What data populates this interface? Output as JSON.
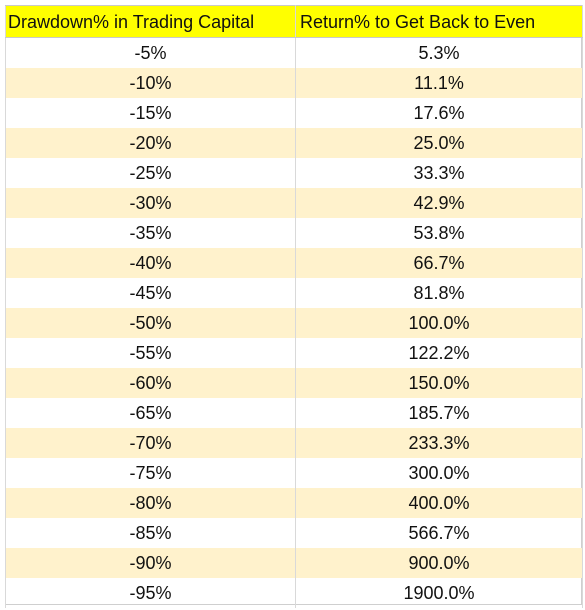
{
  "table": {
    "headers": {
      "drawdown": "Drawdown% in Trading Capital",
      "return_to_even": "Return% to Get Back to Even"
    },
    "rows": [
      {
        "drawdown": "-5%",
        "return_to_even": "5.3%"
      },
      {
        "drawdown": "-10%",
        "return_to_even": "11.1%"
      },
      {
        "drawdown": "-15%",
        "return_to_even": "17.6%"
      },
      {
        "drawdown": "-20%",
        "return_to_even": "25.0%"
      },
      {
        "drawdown": "-25%",
        "return_to_even": "33.3%"
      },
      {
        "drawdown": "-30%",
        "return_to_even": "42.9%"
      },
      {
        "drawdown": "-35%",
        "return_to_even": "53.8%"
      },
      {
        "drawdown": "-40%",
        "return_to_even": "66.7%"
      },
      {
        "drawdown": "-45%",
        "return_to_even": "81.8%"
      },
      {
        "drawdown": "-50%",
        "return_to_even": "100.0%"
      },
      {
        "drawdown": "-55%",
        "return_to_even": "122.2%"
      },
      {
        "drawdown": "-60%",
        "return_to_even": "150.0%"
      },
      {
        "drawdown": "-65%",
        "return_to_even": "185.7%"
      },
      {
        "drawdown": "-70%",
        "return_to_even": "233.3%"
      },
      {
        "drawdown": "-75%",
        "return_to_even": "300.0%"
      },
      {
        "drawdown": "-80%",
        "return_to_even": "400.0%"
      },
      {
        "drawdown": "-85%",
        "return_to_even": "566.7%"
      },
      {
        "drawdown": "-90%",
        "return_to_even": "900.0%"
      },
      {
        "drawdown": "-95%",
        "return_to_even": "1900.0%"
      }
    ]
  },
  "colors": {
    "header_background": "#ffff00",
    "band_background": "#fff2cc",
    "grid_line": "#d9d9d9"
  }
}
